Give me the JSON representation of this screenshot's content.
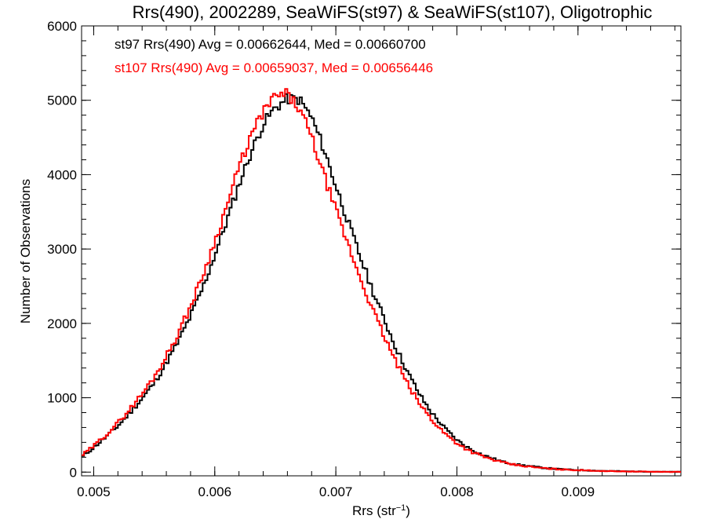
{
  "chart_data": {
    "type": "line",
    "title": "Rrs(490), 2002289, SeaWiFS(st97) & SeaWiFS(st107), Oligotrophic",
    "xlabel": "Rrs (str",
    "xlabel_sup": "−1",
    "xlabel_close": ")",
    "ylabel": "Number of Observations",
    "xlim": [
      0.0049,
      0.00985
    ],
    "ylim": [
      -50,
      6000
    ],
    "x_ticks": [
      0.005,
      0.006,
      0.007,
      0.008,
      0.009
    ],
    "x_tick_labels": [
      "0.005",
      "0.006",
      "0.007",
      "0.008",
      "0.009"
    ],
    "y_ticks": [
      0,
      1000,
      2000,
      3000,
      4000,
      5000,
      6000
    ],
    "y_tick_labels": [
      "0",
      "1000",
      "2000",
      "3000",
      "4000",
      "5000",
      "6000"
    ],
    "grid": false,
    "annotations": [
      {
        "text": "st97 Rrs(490) Avg = 0.00662644, Med = 0.00660700",
        "color": "#000000"
      },
      {
        "text": "st107 Rrs(490) Avg = 0.00659037, Med = 0.00656446",
        "color": "#ff0000"
      }
    ],
    "series": [
      {
        "color": "#000000",
        "x": [
          0.0049,
          0.005,
          0.0051,
          0.0052,
          0.0053,
          0.0054,
          0.0055,
          0.0056,
          0.0057,
          0.0058,
          0.0059,
          0.006,
          0.0061,
          0.0062,
          0.0063,
          0.0064,
          0.0065,
          0.0066,
          0.0067,
          0.0068,
          0.0069,
          0.007,
          0.0071,
          0.0072,
          0.0073,
          0.0074,
          0.0075,
          0.0076,
          0.0077,
          0.0078,
          0.0079,
          0.008,
          0.0081,
          0.0082,
          0.0083,
          0.0084,
          0.0085,
          0.0086,
          0.0087,
          0.0088,
          0.0089,
          0.009,
          0.0091,
          0.0092,
          0.0093,
          0.0094,
          0.0095,
          0.0096,
          0.0097,
          0.0098
        ],
        "y": [
          200,
          330,
          470,
          620,
          800,
          990,
          1200,
          1470,
          1760,
          2100,
          2470,
          2920,
          3380,
          3870,
          4300,
          4680,
          4900,
          5020,
          5010,
          4770,
          4350,
          3850,
          3370,
          2900,
          2460,
          2050,
          1660,
          1320,
          1020,
          780,
          590,
          430,
          320,
          240,
          180,
          130,
          100,
          80,
          60,
          45,
          35,
          28,
          22,
          17,
          13,
          10,
          8,
          6,
          4,
          3
        ]
      },
      {
        "color": "#ff0000",
        "x": [
          0.0049,
          0.005,
          0.0051,
          0.0052,
          0.0053,
          0.0054,
          0.0055,
          0.0056,
          0.0057,
          0.0058,
          0.0059,
          0.006,
          0.0061,
          0.0062,
          0.0063,
          0.0064,
          0.0065,
          0.0066,
          0.0067,
          0.0068,
          0.0069,
          0.007,
          0.0071,
          0.0072,
          0.0073,
          0.0074,
          0.0075,
          0.0076,
          0.0077,
          0.0078,
          0.0079,
          0.008,
          0.0081,
          0.0082,
          0.0083,
          0.0084,
          0.0085,
          0.0086,
          0.0087,
          0.0088,
          0.0089,
          0.009,
          0.0091,
          0.0092,
          0.0093,
          0.0094,
          0.0095,
          0.0096,
          0.0097,
          0.0098
        ],
        "y": [
          220,
          350,
          500,
          660,
          850,
          1050,
          1280,
          1560,
          1870,
          2230,
          2640,
          3100,
          3580,
          4100,
          4520,
          4850,
          5050,
          5080,
          4880,
          4500,
          4000,
          3520,
          3060,
          2620,
          2200,
          1820,
          1470,
          1160,
          900,
          690,
          520,
          390,
          290,
          220,
          165,
          120,
          92,
          72,
          55,
          42,
          33,
          26,
          21,
          16,
          12,
          9,
          7,
          5,
          4,
          3
        ]
      }
    ]
  }
}
